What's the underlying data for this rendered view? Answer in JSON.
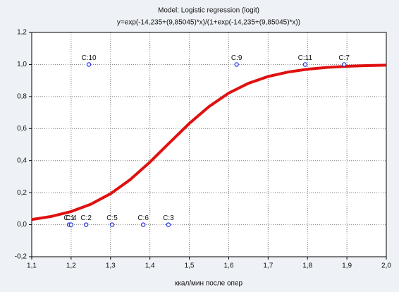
{
  "chart_data": {
    "type": "scatter",
    "title": "Model: Logistic regression (logit)",
    "subtitle": "y=exp(-14,235+(9,85045)*x)/(1+exp(-14,235+(9,85045)*x))",
    "x_label": "ккал/мин после опер",
    "xlim": [
      1.1,
      2.0
    ],
    "ylim": [
      -0.2,
      1.2
    ],
    "xticks": [
      {
        "value": 1.1,
        "label": "1,1"
      },
      {
        "value": 1.2,
        "label": "1,2"
      },
      {
        "value": 1.3,
        "label": "1,3"
      },
      {
        "value": 1.4,
        "label": "1,4"
      },
      {
        "value": 1.5,
        "label": "1,5"
      },
      {
        "value": 1.6,
        "label": "1,6"
      },
      {
        "value": 1.7,
        "label": "1,7"
      },
      {
        "value": 1.8,
        "label": "1,8"
      },
      {
        "value": 1.9,
        "label": "1,9"
      },
      {
        "value": 2.0,
        "label": "2,0"
      }
    ],
    "yticks": [
      {
        "value": -0.2,
        "label": "-0,2"
      },
      {
        "value": 0,
        "label": "0,0"
      },
      {
        "value": 0.2,
        "label": "0,2"
      },
      {
        "value": 0.4,
        "label": "0,4"
      },
      {
        "value": 0.6,
        "label": "0,6"
      },
      {
        "value": 0.8,
        "label": "0,8"
      },
      {
        "value": 1.0,
        "label": "1,0"
      },
      {
        "value": 1.2,
        "label": "1,2"
      }
    ],
    "grid": true,
    "series": [
      {
        "type": "scatter",
        "color": "#2030e0",
        "x": [
          1.245,
          1.62,
          1.794,
          1.893,
          1.195,
          1.2,
          1.238,
          1.304,
          1.383,
          1.447
        ],
        "values": [
          1,
          1,
          1,
          1,
          0,
          0,
          0,
          0,
          0,
          0
        ],
        "point_labels": [
          "C:10",
          "C:9",
          "C:11",
          "C:7",
          "C:1",
          "C:4",
          "C:2",
          "C:5",
          "C:6",
          "C:3"
        ]
      },
      {
        "type": "line",
        "color": "#e01010",
        "x": [
          1.1,
          1.15,
          1.2,
          1.25,
          1.3,
          1.35,
          1.4,
          1.45,
          1.5,
          1.55,
          1.6,
          1.65,
          1.7,
          1.75,
          1.8,
          1.85,
          1.9,
          1.95,
          2.0
        ],
        "values": [
          0.0323,
          0.0518,
          0.0821,
          0.1277,
          0.1932,
          0.2815,
          0.3907,
          0.5121,
          0.632,
          0.7375,
          0.8214,
          0.8827,
          0.9249,
          0.9527,
          0.9706,
          0.9818,
          0.9888,
          0.9931,
          0.9958
        ]
      }
    ]
  }
}
